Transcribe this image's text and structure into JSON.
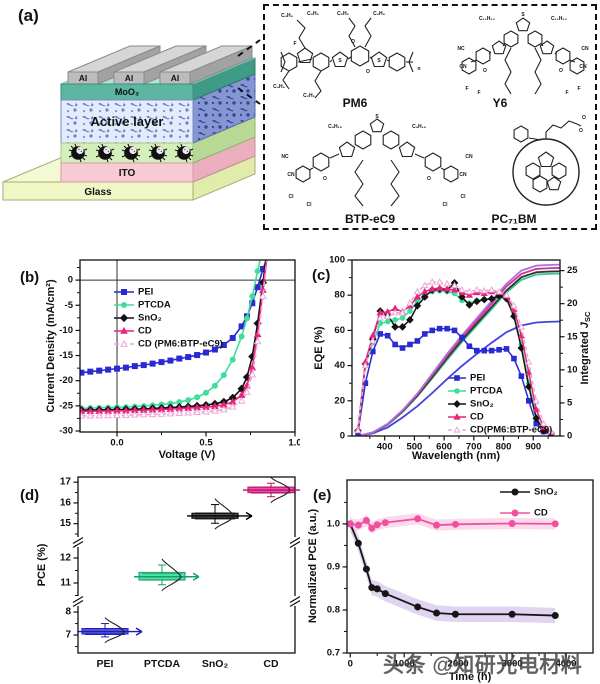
{
  "figure": {
    "panel_label_a": "(a)",
    "watermark": "头条 @知研光电材料"
  },
  "device": {
    "layers": {
      "al": "Al",
      "moo3": "MoO₃",
      "active": "Active layer",
      "ito": "ITO",
      "glass": "Glass"
    }
  },
  "molecules": {
    "pm6": {
      "label": "PM6",
      "atoms": [
        "C₂H₅",
        "C₄H₉",
        "S",
        "F",
        "O",
        "n"
      ]
    },
    "y6": {
      "label": "Y6",
      "atoms": [
        "C₁₁H₂₃",
        "NC",
        "CN",
        "O",
        "F",
        "S"
      ]
    },
    "btp": {
      "label": "BTP-eC9",
      "atoms": [
        "C₉H₁₉",
        "NC",
        "CN",
        "O",
        "Cl",
        "S"
      ]
    },
    "pcbm": {
      "label": "PC₇₁BM",
      "atoms": [
        "O"
      ]
    }
  },
  "chart_data": [
    {
      "id": "b",
      "panel": "(b)",
      "type": "line",
      "xlabel": "Voltage (V)",
      "ylabel": "Current Density (mA/cm²)",
      "xlim": [
        -0.208,
        1.0
      ],
      "ylim": [
        -30.2,
        4.0
      ],
      "xticks": {
        "values": [
          0.0,
          0.5,
          1.0
        ],
        "labels": [
          "0.0",
          "0.5",
          "1.0"
        ],
        "minor": [
          0.25,
          0.75
        ]
      },
      "yticks": {
        "values": [
          0,
          -5,
          -10,
          -15,
          -20,
          -25,
          -30
        ],
        "labels": [
          "0",
          "-5",
          "-10",
          "-15",
          "-20",
          "-25",
          "-30"
        ],
        "minor": [
          2.5,
          -2.5,
          -7.5,
          -12.5,
          -17.5,
          -22.5,
          -27.5
        ]
      },
      "reflines": {
        "h": [
          0
        ],
        "v": [
          0
        ]
      },
      "x": [
        -0.2,
        -0.15,
        -0.1,
        -0.05,
        0,
        0.05,
        0.1,
        0.15,
        0.2,
        0.25,
        0.3,
        0.35,
        0.4,
        0.45,
        0.5,
        0.55,
        0.6,
        0.65,
        0.7,
        0.73,
        0.76,
        0.79,
        0.82,
        0.85
      ],
      "series": [
        {
          "name": "PEI",
          "color": "#2a2ad2",
          "marker": "square",
          "y": [
            -18.4,
            -18.2,
            -18.0,
            -17.8,
            -17.6,
            -17.4,
            -17.1,
            -16.9,
            -16.6,
            -16.3,
            -16.0,
            -15.6,
            -15.3,
            -14.9,
            -14.4,
            -13.8,
            -12.9,
            -11.5,
            -9.2,
            -7.2,
            -4.6,
            -1.4,
            2.2,
            5.0
          ]
        },
        {
          "name": "PTCDA",
          "color": "#3fdf9b",
          "marker": "circle",
          "y": [
            -25.5,
            -25.45,
            -25.4,
            -25.35,
            -25.3,
            -25.25,
            -25.15,
            -25.05,
            -24.9,
            -24.75,
            -24.55,
            -24.25,
            -23.85,
            -23.3,
            -22.4,
            -21.0,
            -18.9,
            -15.8,
            -11.2,
            -7.6,
            -3.2,
            1.8,
            6.5,
            11.0
          ]
        },
        {
          "name": "SnO₂",
          "color": "#121212",
          "marker": "diamond",
          "y": [
            -25.85,
            -25.82,
            -25.8,
            -25.77,
            -25.73,
            -25.7,
            -25.65,
            -25.6,
            -25.5,
            -25.45,
            -25.35,
            -25.25,
            -25.15,
            -25.0,
            -24.85,
            -24.6,
            -24.2,
            -23.4,
            -21.6,
            -19.3,
            -15.2,
            -8.6,
            -0.5,
            8.0
          ]
        },
        {
          "name": "CD",
          "color": "#e6247c",
          "marker": "triangle",
          "y": [
            -26.1,
            -26.07,
            -26.05,
            -26.02,
            -26.0,
            -25.97,
            -25.9,
            -25.85,
            -25.8,
            -25.72,
            -25.65,
            -25.55,
            -25.45,
            -25.35,
            -25.25,
            -25.1,
            -24.8,
            -24.2,
            -22.9,
            -21.0,
            -17.4,
            -10.8,
            -2.0,
            7.0
          ]
        },
        {
          "name": "CD (PM6:BTP-eC9)",
          "color": "#eda6d8",
          "marker": "triangle",
          "open": true,
          "dash": "5,3",
          "y": [
            -27.0,
            -26.97,
            -26.95,
            -26.92,
            -26.9,
            -26.85,
            -26.8,
            -26.75,
            -26.7,
            -26.62,
            -26.55,
            -26.45,
            -26.38,
            -26.28,
            -26.18,
            -26.0,
            -25.75,
            -25.2,
            -24.0,
            -22.3,
            -18.8,
            -12.2,
            -3.2,
            6.0
          ]
        }
      ]
    },
    {
      "id": "c",
      "panel": "(c)",
      "type": "line",
      "xlabel": "Wavelength (nm)",
      "ylabel": "EQE (%)",
      "y2label": "Integrated ",
      "y2label_it": "J",
      "y2label_sub": "SC",
      "xlim": [
        290,
        990
      ],
      "ylim": [
        0,
        100
      ],
      "y2lim": [
        0,
        26.6
      ],
      "xticks": {
        "values": [
          400,
          500,
          600,
          700,
          800,
          900
        ],
        "labels": [
          "400",
          "500",
          "600",
          "700",
          "800",
          "900"
        ],
        "minor": [
          350,
          450,
          550,
          650,
          750,
          850,
          950
        ]
      },
      "yticks": {
        "values": [
          0,
          20,
          40,
          60,
          80,
          100
        ],
        "labels": [
          "0",
          "20",
          "40",
          "60",
          "80",
          "100"
        ],
        "minor": [
          10,
          30,
          50,
          70,
          90
        ]
      },
      "y2ticks": {
        "values": [
          0,
          5,
          10,
          15,
          20,
          25
        ],
        "labels": [
          "0",
          "5",
          "10",
          "15",
          "20",
          "25"
        ],
        "minor": [
          2.5,
          7.5,
          12.5,
          17.5,
          22.5
        ]
      },
      "x": [
        310,
        335,
        360,
        385,
        410,
        435,
        460,
        485,
        510,
        535,
        560,
        585,
        610,
        635,
        660,
        685,
        710,
        735,
        760,
        785,
        810,
        835,
        860,
        885,
        910,
        935,
        960
      ],
      "series": [
        {
          "name": "PEI",
          "color": "#2a2ad2",
          "marker": "square",
          "y": [
            2,
            30,
            48,
            58,
            57,
            52,
            50,
            52,
            54,
            58,
            60,
            61,
            61,
            60,
            56,
            51,
            48.5,
            48.5,
            48.5,
            49,
            49.5,
            44,
            34,
            20,
            7,
            2.5,
            1
          ]
        },
        {
          "name": "PTCDA",
          "color": "#3fdf9b",
          "marker": "circle",
          "y": [
            3,
            40,
            53,
            64,
            65,
            66,
            67,
            71,
            77,
            80,
            82,
            82.5,
            82,
            81,
            77,
            75.5,
            77,
            77.5,
            78,
            79,
            78.5,
            69,
            52,
            30,
            11,
            3.5,
            1.5
          ]
        },
        {
          "name": "SnO₂",
          "color": "#121212",
          "marker": "diamond",
          "y": [
            3,
            41,
            55,
            71,
            69,
            62,
            62,
            66,
            74,
            79,
            83,
            83.5,
            83,
            87,
            79,
            74.5,
            76.5,
            77.5,
            78,
            79.5,
            78,
            68,
            50,
            28,
            10,
            3,
            1.5
          ]
        },
        {
          "name": "CD",
          "color": "#e6247c",
          "marker": "triangle",
          "y": [
            3.5,
            42,
            57,
            70,
            70.5,
            72.5,
            70.5,
            74,
            79,
            82,
            83.5,
            84,
            83.5,
            83,
            81.5,
            80,
            81.5,
            81,
            82,
            81.5,
            79.5,
            72,
            57,
            36,
            15,
            5,
            2
          ]
        },
        {
          "name": "CD(PM6:BTP-eC9)",
          "color": "#eda6d8",
          "marker": "triangle",
          "open": true,
          "dash": "4,3",
          "y": [
            3,
            40,
            54,
            67,
            68,
            70,
            70,
            75.5,
            82,
            85.5,
            87.5,
            87.5,
            86.5,
            85.5,
            83,
            82,
            83,
            82.5,
            83,
            82,
            80,
            74,
            62,
            42,
            20,
            7,
            2.5
          ]
        }
      ],
      "x2": [
        310,
        360,
        410,
        460,
        510,
        560,
        610,
        660,
        710,
        760,
        810,
        860,
        910,
        950,
        988
      ],
      "series2": [
        {
          "name": "PEI integrated",
          "color": "#4343e0",
          "y": [
            0,
            0.4,
            1.3,
            2.8,
            4.5,
            6.5,
            8.6,
            10.6,
            12.4,
            14.1,
            15.7,
            16.7,
            17.15,
            17.25,
            17.3
          ]
        },
        {
          "name": "PTCDA integrated",
          "color": "#35c98f",
          "y": [
            0,
            0.5,
            1.7,
            3.6,
            6.0,
            8.7,
            11.5,
            14.2,
            16.7,
            19.2,
            21.7,
            23.6,
            24.4,
            24.5,
            24.55
          ]
        },
        {
          "name": "SnO₂ integrated",
          "color": "#333333",
          "y": [
            0,
            0.5,
            1.75,
            3.7,
            6.1,
            8.9,
            11.8,
            14.5,
            17.0,
            19.5,
            22.0,
            24.0,
            24.75,
            24.85,
            24.9
          ]
        },
        {
          "name": "CD integrated",
          "color": "#d2309a",
          "y": [
            0,
            0.55,
            1.8,
            3.8,
            6.3,
            9.2,
            12.1,
            14.9,
            17.4,
            20.0,
            22.6,
            24.5,
            25.25,
            25.35,
            25.4
          ]
        },
        {
          "name": "CD(PM6:BTP-eC9) integrated",
          "color": "#b070d8",
          "y": [
            0,
            0.55,
            1.85,
            3.9,
            6.4,
            9.4,
            12.4,
            15.2,
            17.8,
            20.4,
            23.0,
            25.0,
            25.75,
            25.85,
            25.9
          ]
        }
      ]
    },
    {
      "id": "d",
      "panel": "(d)",
      "type": "box",
      "ylabel": "PCE (%)",
      "categories": [
        "PEI",
        "PTCDA",
        "SnO₂",
        "CD"
      ],
      "colors": [
        "#4d4de0",
        "#44e09e",
        "#3f3f3f",
        "#f63fa0"
      ],
      "edge_colors": [
        "#1d1db0",
        "#14a06a",
        "#000000",
        "#b5106b"
      ],
      "boxes": [
        {
          "median": 7.15,
          "q1": 7.05,
          "q3": 7.28,
          "lo": 6.92,
          "hi": 7.5
        },
        {
          "median": 11.25,
          "q1": 11.12,
          "q3": 11.42,
          "lo": 10.93,
          "hi": 11.72
        },
        {
          "median": 15.37,
          "q1": 15.26,
          "q3": 15.5,
          "lo": 15.02,
          "hi": 15.92
        },
        {
          "median": 16.62,
          "q1": 16.5,
          "q3": 16.76,
          "lo": 16.3,
          "hi": 16.95
        }
      ],
      "segments": [
        {
          "v_top": 17.25,
          "v_bottom": 14.26,
          "ticks": [
            17,
            16,
            15
          ],
          "minor": [
            16.5,
            15.5,
            14.5
          ]
        },
        {
          "v_top": 12.52,
          "v_bottom": 10.4,
          "ticks": [
            12,
            11
          ],
          "minor": [
            12.5,
            11.5,
            10.5
          ]
        },
        {
          "v_top": 8.35,
          "v_bottom": 6.22,
          "ticks": [
            8,
            7
          ],
          "minor": [
            7.5,
            6.5
          ]
        }
      ]
    },
    {
      "id": "e",
      "panel": "(e)",
      "type": "line",
      "xlabel": "Time (h)",
      "ylabel": "Normalized PCE (a.u.)",
      "xlim": [
        -60,
        4500
      ],
      "ylim": [
        0.7,
        1.102
      ],
      "xticks": {
        "values": [
          0,
          1000,
          2000,
          3000,
          4000
        ],
        "labels": [
          "0",
          "1000",
          "2000",
          "3000",
          "4000"
        ],
        "minor": [
          500,
          1500,
          2500,
          3500
        ]
      },
      "yticks": {
        "values": [
          0.7,
          0.8,
          0.9,
          1.0
        ],
        "labels": [
          "0.7",
          "0.8",
          "0.9",
          "1.0"
        ],
        "minor": [
          0.75,
          0.85,
          0.95,
          1.05
        ]
      },
      "x": [
        0,
        150,
        300,
        400,
        500,
        650,
        1250,
        1600,
        1950,
        3000,
        3800
      ],
      "series": [
        {
          "name": "SnO₂",
          "color": "#161616",
          "marker": "circle",
          "band": 0.018,
          "band_color": "#c7b1e6",
          "y": [
            1.0,
            0.955,
            0.895,
            0.852,
            0.849,
            0.838,
            0.807,
            0.793,
            0.79,
            0.79,
            0.787
          ]
        },
        {
          "name": "CD",
          "color": "#f0509f",
          "marker": "circle",
          "band": 0.013,
          "band_color": "#f8bcdb",
          "y": [
            1.0,
            0.997,
            1.008,
            0.99,
            0.998,
            1.003,
            1.012,
            0.997,
            0.999,
            1.001,
            1.0
          ]
        }
      ]
    }
  ]
}
